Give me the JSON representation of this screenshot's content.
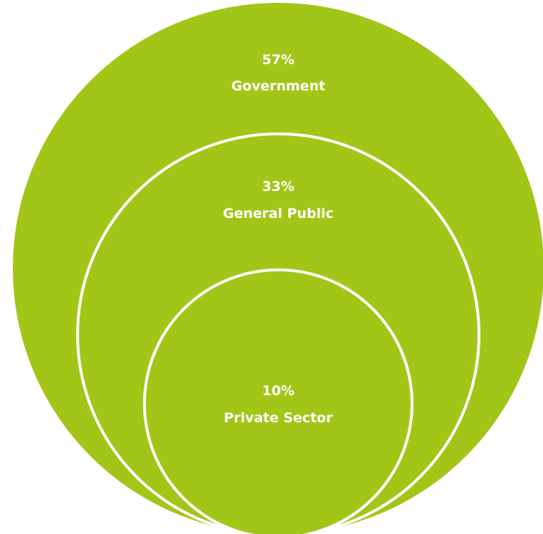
{
  "diagram": {
    "type": "nested-circles",
    "fill_color": "#a2c617",
    "stroke_color": "#ffffff",
    "circles": [
      {
        "percent": "57%",
        "label": "Government"
      },
      {
        "percent": "33%",
        "label": "General Public"
      },
      {
        "percent": "10%",
        "label": "Private Sector"
      }
    ]
  }
}
